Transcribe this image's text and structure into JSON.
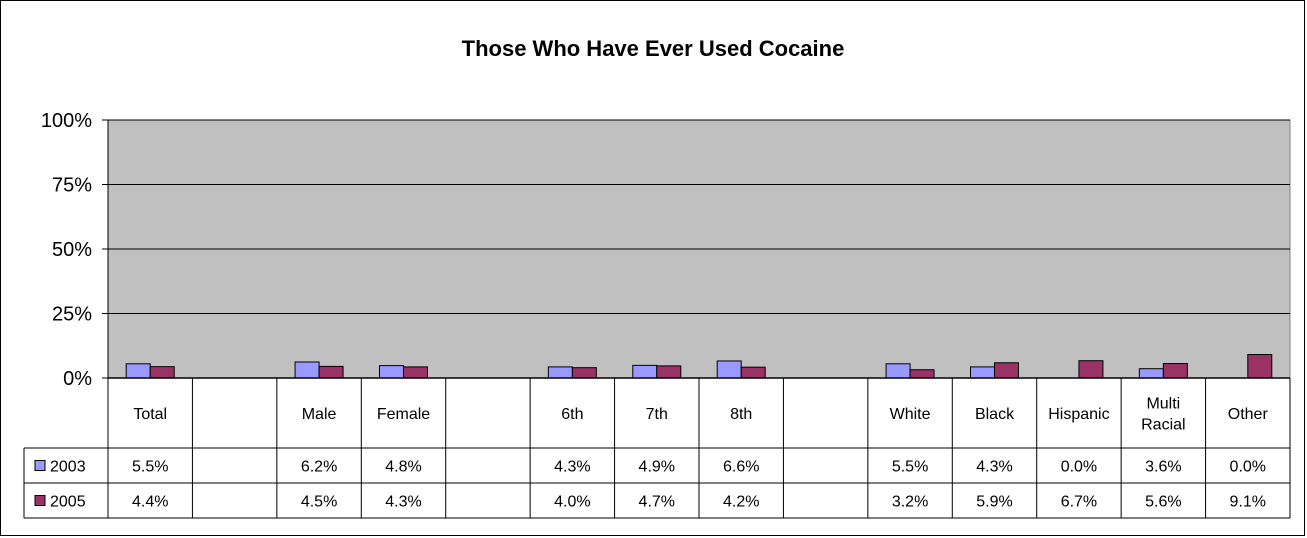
{
  "chart_data": {
    "type": "bar",
    "title": "Those Who Have Ever Used Cocaine",
    "yticks": [
      "0%",
      "25%",
      "50%",
      "75%",
      "100%"
    ],
    "ylim": [
      0,
      100
    ],
    "grid": true,
    "legend": "data-table-left",
    "categories": [
      [
        "Total"
      ],
      [
        ""
      ],
      [
        "Male"
      ],
      [
        "Female"
      ],
      [
        ""
      ],
      [
        "6th"
      ],
      [
        "7th"
      ],
      [
        "8th"
      ],
      [
        ""
      ],
      [
        "White"
      ],
      [
        "Black"
      ],
      [
        "Hispanic"
      ],
      [
        "Multi",
        "Racial"
      ],
      [
        "Other"
      ]
    ],
    "series": [
      {
        "name": "2003",
        "color": "#9999ff",
        "values": [
          5.5,
          null,
          6.2,
          4.8,
          null,
          4.3,
          4.9,
          6.6,
          null,
          5.5,
          4.3,
          0.0,
          3.6,
          0.0
        ],
        "labels": [
          "5.5%",
          "",
          "6.2%",
          "4.8%",
          "",
          "4.3%",
          "4.9%",
          "6.6%",
          "",
          "5.5%",
          "4.3%",
          "0.0%",
          "3.6%",
          "0.0%"
        ]
      },
      {
        "name": "2005",
        "color": "#993366",
        "values": [
          4.4,
          null,
          4.5,
          4.3,
          null,
          4.0,
          4.7,
          4.2,
          null,
          3.2,
          5.9,
          6.7,
          5.6,
          9.1
        ],
        "labels": [
          "4.4%",
          "",
          "4.5%",
          "4.3%",
          "",
          "4.0%",
          "4.7%",
          "4.2%",
          "",
          "3.2%",
          "5.9%",
          "6.7%",
          "5.6%",
          "9.1%"
        ]
      }
    ],
    "plot_background": "#c0c0c0"
  }
}
